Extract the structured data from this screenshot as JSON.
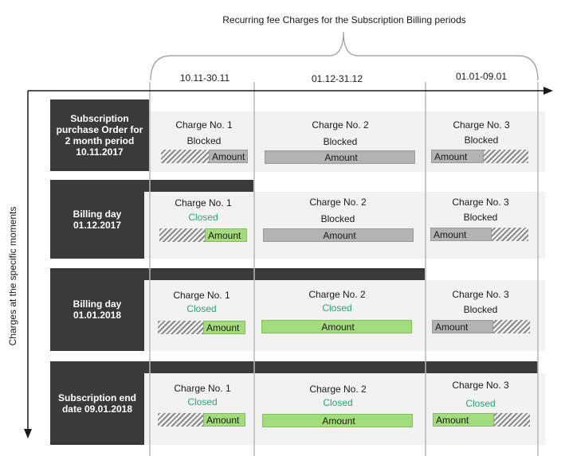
{
  "title": "Recurring fee Charges for the Subscription Billing periods",
  "y_axis_label": "Charges at the specific moments",
  "periods": [
    "10.11-30.11",
    "01.12-31.12",
    "01.01-09.01"
  ],
  "amount_label": "Amount",
  "colors": {
    "dark": "#3a3a3a",
    "closed_text": "#2aa37a",
    "closed_bar": "#a3dc7a",
    "blocked_bar": "#b3b3b3",
    "row_bg": "#f2f2f2"
  },
  "rows": [
    {
      "label": "Subscription purchase Order for 2 month period 10.11.2017",
      "charges": [
        {
          "name": "Charge No. 1",
          "status": "Blocked",
          "state": "blocked",
          "hatched_fraction": 0.55,
          "hatch_side": "left"
        },
        {
          "name": "Charge No. 2",
          "status": "Blocked",
          "state": "blocked",
          "hatched_fraction": 0,
          "hatch_side": "none"
        },
        {
          "name": "Charge No. 3",
          "status": "Blocked",
          "state": "blocked",
          "hatched_fraction": 0.46,
          "hatch_side": "right"
        }
      ]
    },
    {
      "label": "Billing day 01.12.2017",
      "charges": [
        {
          "name": "Charge No. 1",
          "status": "Closed",
          "state": "closed",
          "hatched_fraction": 0.52,
          "hatch_side": "left"
        },
        {
          "name": "Charge No. 2",
          "status": "Blocked",
          "state": "blocked",
          "hatched_fraction": 0,
          "hatch_side": "none"
        },
        {
          "name": "Charge No. 3",
          "status": "Blocked",
          "state": "blocked",
          "hatched_fraction": 0.37,
          "hatch_side": "right"
        }
      ]
    },
    {
      "label": "Billing day 01.01.2018",
      "charges": [
        {
          "name": "Charge No. 1",
          "status": "Closed",
          "state": "closed",
          "hatched_fraction": 0.52,
          "hatch_side": "left"
        },
        {
          "name": "Charge No. 2",
          "status": "Closed",
          "state": "closed",
          "hatched_fraction": 0,
          "hatch_side": "none"
        },
        {
          "name": "Charge No. 3",
          "status": "Blocked",
          "state": "blocked",
          "hatched_fraction": 0.37,
          "hatch_side": "right"
        }
      ]
    },
    {
      "label": "Subscription end date 09.01.2018",
      "charges": [
        {
          "name": "Charge No. 1",
          "status": "Closed",
          "state": "closed",
          "hatched_fraction": 0.52,
          "hatch_side": "left"
        },
        {
          "name": "Charge No. 2",
          "status": "Closed",
          "state": "closed",
          "hatched_fraction": 0,
          "hatch_side": "none"
        },
        {
          "name": "Charge No. 3",
          "status": "Closed",
          "state": "closed",
          "hatched_fraction": 0.37,
          "hatch_side": "right"
        }
      ]
    }
  ]
}
